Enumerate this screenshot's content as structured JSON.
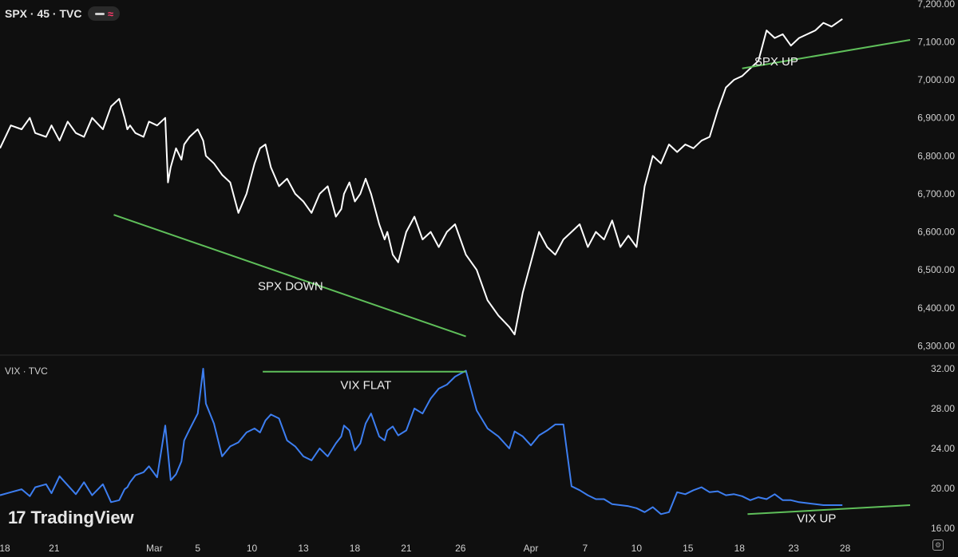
{
  "header": {
    "symbol_label": "SPX · 45 · TVC"
  },
  "subheader": {
    "symbol_label": "VIX · TVC"
  },
  "branding": {
    "name": "TradingView"
  },
  "colors": {
    "background": "#0f0f0f",
    "spx_line": "#ffffff",
    "vix_line": "#3d7ef0",
    "trendline": "#5fbf5a",
    "divider": "#2e2e2e"
  },
  "icons": {
    "settings": "settings-icon",
    "logo": "tradingview-logo-icon"
  },
  "chart_data": [
    {
      "type": "line",
      "series": [
        {
          "name": "SPX",
          "x": [
            0,
            4,
            8,
            11,
            13,
            17,
            19,
            22,
            25,
            28,
            31,
            34,
            38,
            41,
            44,
            46,
            47,
            48,
            50,
            53,
            55,
            58,
            61,
            62,
            63,
            65,
            67,
            68,
            70,
            73,
            75,
            76,
            79,
            82,
            85,
            88,
            91,
            94,
            96,
            98,
            100,
            103,
            106,
            109,
            112,
            115,
            118,
            121,
            124,
            126,
            127,
            129,
            131,
            133,
            135,
            137,
            140,
            142,
            143,
            145,
            147,
            150,
            153,
            156,
            159,
            162,
            165,
            168,
            172,
            176,
            180,
            184,
            188,
            190,
            193,
            196,
            199,
            202,
            205,
            208,
            211,
            214,
            217,
            220,
            223,
            226,
            229,
            232,
            235,
            238,
            241,
            244,
            247,
            250,
            253,
            256,
            259,
            262,
            265,
            268,
            271,
            274,
            277,
            280,
            283,
            286,
            289,
            292,
            295,
            298,
            301,
            304,
            307,
            311
          ],
          "y": [
            6820,
            6880,
            6870,
            6900,
            6860,
            6850,
            6880,
            6840,
            6890,
            6860,
            6850,
            6900,
            6870,
            6930,
            6950,
            6900,
            6870,
            6880,
            6860,
            6850,
            6890,
            6880,
            6900,
            6730,
            6770,
            6820,
            6790,
            6830,
            6850,
            6870,
            6840,
            6800,
            6780,
            6750,
            6730,
            6650,
            6700,
            6780,
            6820,
            6830,
            6770,
            6720,
            6740,
            6700,
            6680,
            6650,
            6700,
            6720,
            6640,
            6660,
            6700,
            6730,
            6680,
            6700,
            6740,
            6700,
            6620,
            6580,
            6600,
            6540,
            6520,
            6600,
            6640,
            6580,
            6600,
            6560,
            6600,
            6620,
            6540,
            6500,
            6420,
            6380,
            6350,
            6330,
            6440,
            6520,
            6600,
            6560,
            6540,
            6580,
            6600,
            6620,
            6560,
            6600,
            6580,
            6630,
            6560,
            6590,
            6560,
            6720,
            6800,
            6780,
            6830,
            6810,
            6830,
            6820,
            6840,
            6850,
            6920,
            6980,
            7000,
            7010,
            7030,
            7050,
            7130,
            7110,
            7120,
            7090,
            7110,
            7120,
            7130,
            7150,
            7140,
            7160
          ]
        }
      ],
      "annotations": [
        {
          "text": "SPX DOWN",
          "from": [
            42,
            6645
          ],
          "to": [
            172,
            6325
          ]
        },
        {
          "text": "SPX UP",
          "from": [
            274,
            7030
          ],
          "to": [
            336,
            7105
          ]
        }
      ],
      "y_ticks": [
        "7,200.00",
        "7,100.00",
        "7,000.00",
        "6,900.00",
        "6,800.00",
        "6,700.00",
        "6,600.00",
        "6,500.00",
        "6,400.00",
        "6,300.00"
      ],
      "ylim": [
        6280,
        7210
      ],
      "xlim": [
        0,
        336
      ]
    },
    {
      "type": "line",
      "series": [
        {
          "name": "VIX",
          "x": [
            0,
            4,
            8,
            11,
            13,
            17,
            19,
            22,
            25,
            28,
            31,
            34,
            38,
            41,
            44,
            46,
            47,
            48,
            50,
            53,
            55,
            58,
            61,
            62,
            63,
            65,
            67,
            68,
            70,
            73,
            75,
            76,
            79,
            82,
            85,
            88,
            91,
            94,
            96,
            98,
            100,
            103,
            106,
            109,
            112,
            115,
            118,
            121,
            124,
            126,
            127,
            129,
            131,
            133,
            135,
            137,
            140,
            142,
            143,
            145,
            147,
            150,
            153,
            156,
            159,
            162,
            165,
            168,
            172,
            176,
            180,
            184,
            188,
            190,
            193,
            196,
            199,
            202,
            205,
            208,
            211,
            214,
            217,
            220,
            223,
            226,
            229,
            232,
            235,
            238,
            241,
            244,
            247,
            250,
            253,
            256,
            259,
            262,
            265,
            268,
            271,
            274,
            277,
            280,
            283,
            286,
            289,
            292,
            295,
            298,
            301,
            304,
            307,
            311
          ],
          "y": [
            19.3,
            19.6,
            19.9,
            19.2,
            20.1,
            20.4,
            19.5,
            21.2,
            20.3,
            19.4,
            20.6,
            19.3,
            20.4,
            18.6,
            18.8,
            19.9,
            20.1,
            20.6,
            21.3,
            21.6,
            22.2,
            21.1,
            26.3,
            23.6,
            20.8,
            21.4,
            22.7,
            24.8,
            25.9,
            27.5,
            32.0,
            28.5,
            26.5,
            23.2,
            24.2,
            24.6,
            25.6,
            26.0,
            25.6,
            26.8,
            27.4,
            27.0,
            24.8,
            24.2,
            23.2,
            22.8,
            24.0,
            23.2,
            24.5,
            25.2,
            26.3,
            25.8,
            23.8,
            24.5,
            26.5,
            27.5,
            25.2,
            24.8,
            25.8,
            26.2,
            25.3,
            25.8,
            28.0,
            27.5,
            29.0,
            30.0,
            30.4,
            31.2,
            31.8,
            27.8,
            26.0,
            25.2,
            24.0,
            25.7,
            25.2,
            24.3,
            25.3,
            25.8,
            26.4,
            26.4,
            20.2,
            19.8,
            19.3,
            18.9,
            18.9,
            18.4,
            18.3,
            18.2,
            18.0,
            17.6,
            18.1,
            17.4,
            17.6,
            19.6,
            19.4,
            19.8,
            20.1,
            19.6,
            19.7,
            19.3,
            19.4,
            19.2,
            18.8,
            19.1,
            18.9,
            19.4,
            18.8,
            18.8,
            18.6,
            18.5,
            18.4,
            18.3,
            18.3,
            18.3
          ]
        }
      ],
      "annotations": [
        {
          "text": "VIX FLAT",
          "from": [
            97,
            31.7
          ],
          "to": [
            172,
            31.7
          ]
        },
        {
          "text": "VIX UP",
          "from": [
            276,
            17.4
          ],
          "to": [
            336,
            18.3
          ]
        }
      ],
      "y_ticks": [
        "32.00",
        "28.00",
        "24.00",
        "20.00",
        "16.00"
      ],
      "ylim": [
        15.5,
        33.2
      ],
      "xlim": [
        0,
        336
      ]
    }
  ],
  "x_axis": {
    "ticks": [
      {
        "label": "18",
        "x": 0
      },
      {
        "label": "21",
        "x": 20
      },
      {
        "label": "Mar",
        "x": 57
      },
      {
        "label": "5",
        "x": 73
      },
      {
        "label": "10",
        "x": 93
      },
      {
        "label": "13",
        "x": 112
      },
      {
        "label": "18",
        "x": 131
      },
      {
        "label": "21",
        "x": 150
      },
      {
        "label": "26",
        "x": 170
      },
      {
        "label": "Apr",
        "x": 196
      },
      {
        "label": "7",
        "x": 216
      },
      {
        "label": "10",
        "x": 235
      },
      {
        "label": "15",
        "x": 254
      },
      {
        "label": "18",
        "x": 273
      },
      {
        "label": "23",
        "x": 293
      },
      {
        "label": "28",
        "x": 312
      }
    ],
    "xlim": [
      0,
      336
    ]
  }
}
